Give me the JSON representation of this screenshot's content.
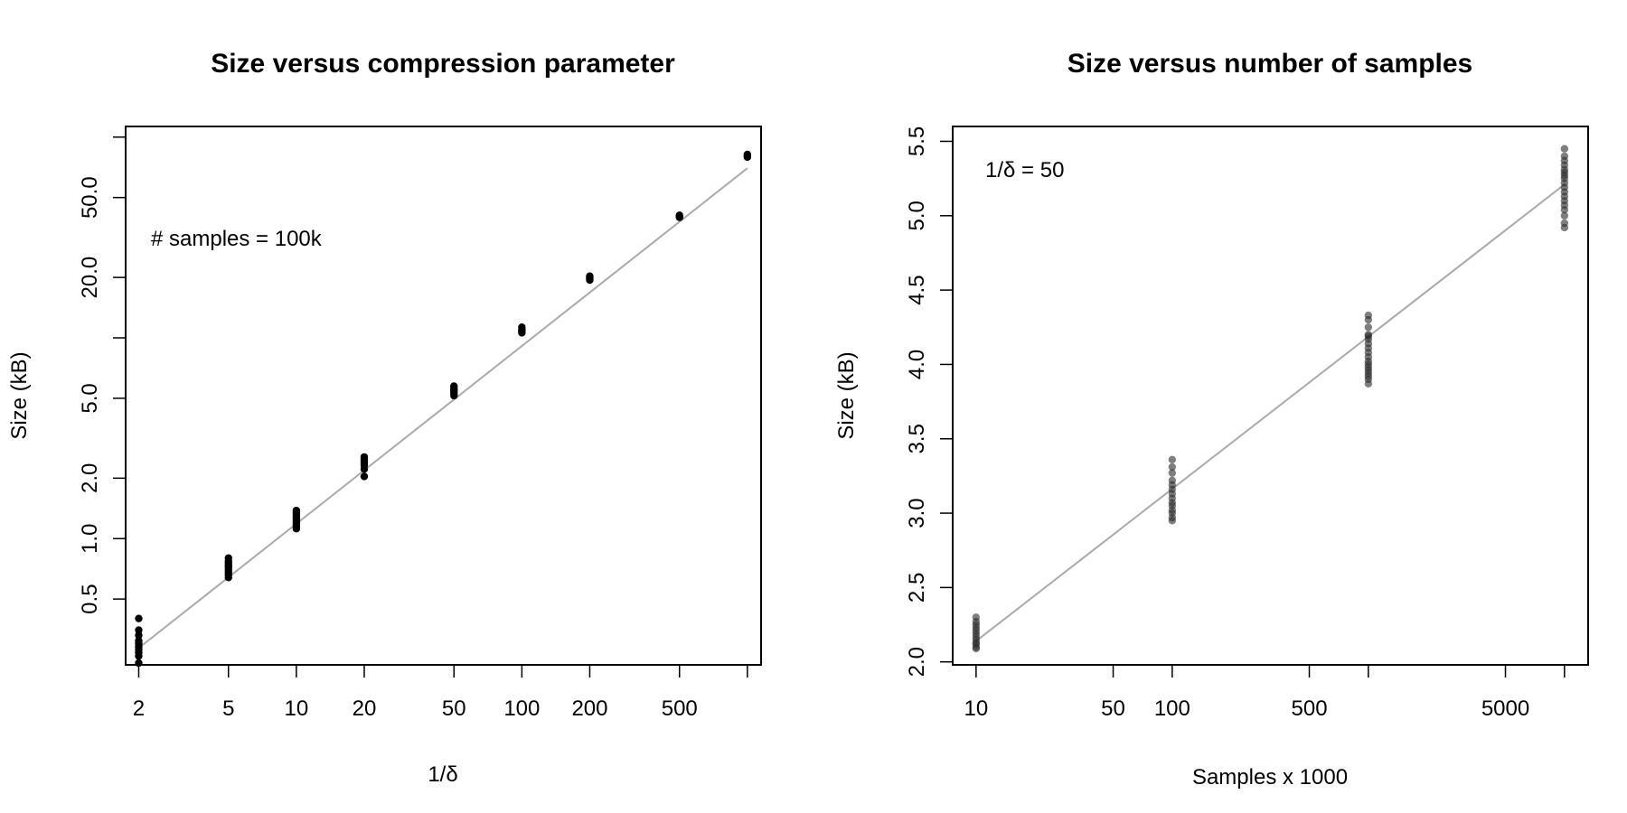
{
  "chart_data": [
    {
      "type": "scatter",
      "title": "Size versus compression parameter",
      "xlabel": "1/δ",
      "ylabel": "Size (kB)",
      "x_scale": "log",
      "y_scale": "log",
      "xlim": [
        1.75,
        1150
      ],
      "ylim": [
        0.235,
        113
      ],
      "x_ticks": [
        2,
        5,
        10,
        20,
        50,
        100,
        200,
        500,
        1000
      ],
      "x_tick_labels": [
        "2",
        "5",
        "10",
        "20",
        "50",
        "100",
        "200",
        "500",
        ""
      ],
      "y_ticks": [
        0.5,
        1.0,
        2.0,
        5.0,
        20.0,
        50.0
      ],
      "y_tick_labels": [
        "0.5",
        "1.0",
        "2.0",
        "5.0",
        "20.0",
        "50.0"
      ],
      "y_minor_ticks": [
        10,
        100
      ],
      "annotation": "# samples = 100k",
      "series": [
        {
          "name": "observations",
          "x": [
            2,
            2,
            2,
            2,
            2,
            2,
            2,
            2,
            2,
            2,
            5,
            5,
            5,
            5,
            5,
            5,
            5,
            5,
            5,
            10,
            10,
            10,
            10,
            10,
            10,
            10,
            10,
            10,
            20,
            20,
            20,
            20,
            20,
            20,
            20,
            50,
            50,
            50,
            50,
            50,
            50,
            100,
            100,
            100,
            100,
            200,
            200,
            200,
            200,
            500,
            500,
            500,
            1000,
            1000,
            1000
          ],
          "y": [
            0.4,
            0.35,
            0.33,
            0.31,
            0.3,
            0.29,
            0.28,
            0.27,
            0.26,
            0.24,
            0.8,
            0.77,
            0.75,
            0.73,
            0.72,
            0.7,
            0.68,
            0.66,
            0.64,
            1.38,
            1.34,
            1.3,
            1.27,
            1.24,
            1.21,
            1.18,
            1.15,
            1.12,
            2.55,
            2.48,
            2.42,
            2.38,
            2.32,
            2.22,
            2.04,
            5.75,
            5.6,
            5.5,
            5.4,
            5.28,
            5.15,
            11.3,
            11.0,
            10.8,
            10.6,
            20.3,
            20.0,
            19.7,
            19.4,
            40.8,
            40.3,
            39.8,
            82.0,
            80.5,
            79.5
          ]
        }
      ],
      "fit_line": {
        "x": [
          2,
          1000
        ],
        "y": [
          0.285,
          70.0
        ]
      }
    },
    {
      "type": "scatter",
      "title": "Size versus number of samples",
      "xlabel": "Samples x 1000",
      "ylabel": "Size (kB)",
      "x_scale": "log",
      "y_scale": "linear",
      "xlim": [
        7.6,
        13200
      ],
      "ylim": [
        1.98,
        5.6
      ],
      "x_ticks": [
        10,
        50,
        100,
        500,
        1000,
        5000,
        10000
      ],
      "x_tick_labels": [
        "10",
        "50",
        "100",
        "500",
        "",
        "5000",
        ""
      ],
      "y_ticks": [
        2.0,
        2.5,
        3.0,
        3.5,
        4.0,
        4.5,
        5.0,
        5.5
      ],
      "y_tick_labels": [
        "2.0",
        "2.5",
        "3.0",
        "3.5",
        "4.0",
        "4.5",
        "5.0",
        "5.5"
      ],
      "annotation": "1/δ = 50",
      "series": [
        {
          "name": "observations",
          "x": [
            10,
            10,
            10,
            10,
            10,
            10,
            10,
            10,
            10,
            10,
            10,
            10,
            100,
            100,
            100,
            100,
            100,
            100,
            100,
            100,
            100,
            100,
            100,
            100,
            100,
            100,
            1000,
            1000,
            1000,
            1000,
            1000,
            1000,
            1000,
            1000,
            1000,
            1000,
            1000,
            1000,
            1000,
            1000,
            1000,
            1000,
            1000,
            1000,
            10000,
            10000,
            10000,
            10000,
            10000,
            10000,
            10000,
            10000,
            10000,
            10000,
            10000,
            10000,
            10000,
            10000,
            10000,
            10000,
            10000,
            10000
          ],
          "y": [
            2.3,
            2.27,
            2.25,
            2.23,
            2.21,
            2.19,
            2.17,
            2.15,
            2.13,
            2.12,
            2.1,
            2.09,
            3.36,
            3.31,
            3.27,
            3.22,
            3.19,
            3.16,
            3.13,
            3.1,
            3.07,
            3.05,
            3.02,
            3.0,
            2.97,
            2.95,
            4.33,
            4.3,
            4.25,
            4.2,
            4.17,
            4.14,
            4.11,
            4.08,
            4.05,
            4.02,
            4.0,
            3.98,
            3.96,
            3.94,
            3.92,
            3.9,
            3.87,
            4.19,
            5.45,
            5.4,
            5.37,
            5.34,
            5.31,
            5.29,
            5.27,
            5.25,
            5.22,
            5.19,
            5.16,
            5.13,
            5.1,
            5.07,
            5.04,
            5.0,
            4.95,
            4.92
          ]
        }
      ],
      "fit_line": {
        "x": [
          10,
          10000
        ],
        "y": [
          2.14,
          5.21
        ]
      }
    }
  ],
  "colors": {
    "points_left": "#000000",
    "points_right": "#2a2a2a",
    "fit_line": "#aaaaaa",
    "axes": "#000000"
  }
}
